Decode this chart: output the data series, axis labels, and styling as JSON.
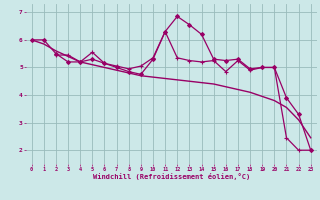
{
  "bg_color": "#cce8e8",
  "line_color": "#990066",
  "grid_color": "#99bbbb",
  "xlabel": "Windchill (Refroidissement éolien,°C)",
  "xlabel_color": "#990066",
  "tick_color": "#990066",
  "xlim": [
    -0.5,
    23.5
  ],
  "ylim": [
    1.5,
    7.3
  ],
  "yticks": [
    2,
    3,
    4,
    5,
    6,
    7
  ],
  "xticks": [
    0,
    1,
    2,
    3,
    4,
    5,
    6,
    7,
    8,
    9,
    10,
    11,
    12,
    13,
    14,
    15,
    16,
    17,
    18,
    19,
    20,
    21,
    22,
    23
  ],
  "series": [
    {
      "x": [
        0,
        1,
        2,
        3,
        4,
        5,
        6,
        7,
        8,
        9,
        10,
        11,
        12,
        13,
        14,
        15,
        16,
        17,
        18,
        19,
        20,
        21,
        22,
        23
      ],
      "y": [
        6.0,
        6.0,
        5.5,
        5.2,
        5.2,
        5.3,
        5.15,
        5.0,
        4.85,
        4.75,
        5.3,
        6.3,
        6.85,
        6.55,
        6.2,
        5.3,
        5.25,
        5.3,
        4.95,
        5.0,
        5.0,
        3.9,
        3.3,
        2.0
      ],
      "marker": "D",
      "markersize": 2.0,
      "linewidth": 0.9
    },
    {
      "x": [
        0,
        1,
        2,
        3,
        4,
        5,
        6,
        7,
        8,
        9,
        10,
        11,
        12,
        13,
        14,
        15,
        16,
        17,
        18,
        19,
        20,
        21,
        22,
        23
      ],
      "y": [
        6.0,
        5.85,
        5.6,
        5.4,
        5.2,
        5.1,
        5.0,
        4.9,
        4.8,
        4.7,
        4.65,
        4.6,
        4.55,
        4.5,
        4.45,
        4.4,
        4.3,
        4.2,
        4.1,
        3.95,
        3.8,
        3.55,
        3.1,
        2.45
      ],
      "marker": null,
      "markersize": 0,
      "linewidth": 1.0
    },
    {
      "x": [
        2,
        3,
        4,
        5,
        6,
        7,
        8,
        9,
        10,
        11,
        12,
        13,
        14,
        15,
        16,
        17,
        18,
        19,
        20,
        21,
        22,
        23
      ],
      "y": [
        5.45,
        5.45,
        5.2,
        5.55,
        5.15,
        5.05,
        4.95,
        5.05,
        5.35,
        6.3,
        5.35,
        5.25,
        5.2,
        5.25,
        4.85,
        5.25,
        4.9,
        5.0,
        5.0,
        2.45,
        2.0,
        2.0
      ],
      "marker": "+",
      "markersize": 3.5,
      "linewidth": 0.9
    }
  ]
}
